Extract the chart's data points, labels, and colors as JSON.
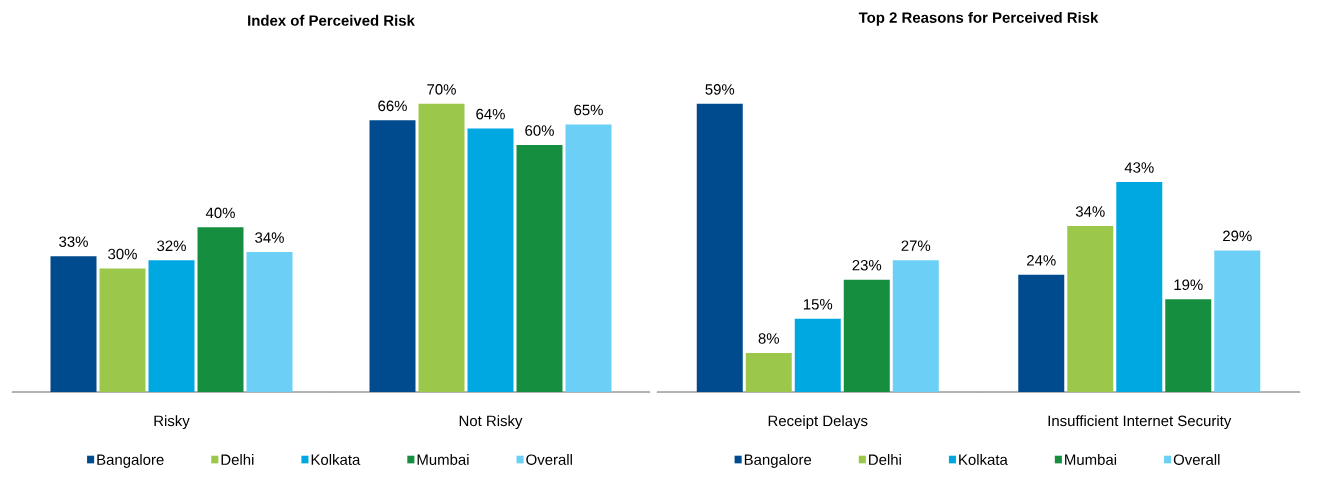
{
  "chart_data": [
    {
      "type": "bar",
      "title": "Index of Perceived Risk",
      "categories": [
        "Risky",
        "Not Risky"
      ],
      "legend": "bottom",
      "series": [
        {
          "name": "Bangalore",
          "color": "#004b8d",
          "values": [
            33,
            66
          ],
          "value_labels": [
            "33%",
            "66%"
          ]
        },
        {
          "name": "Delhi",
          "color": "#9bc84b",
          "values": [
            30,
            70
          ],
          "value_labels": [
            "30%",
            "70%"
          ]
        },
        {
          "name": "Kolkata",
          "color": "#00a8e1",
          "values": [
            32,
            64
          ],
          "value_labels": [
            "32%",
            "64%"
          ]
        },
        {
          "name": "Mumbai",
          "color": "#158f3f",
          "values": [
            40,
            60
          ],
          "value_labels": [
            "40%",
            "60%"
          ]
        },
        {
          "name": "Overall",
          "color": "#6ccff6",
          "values": [
            34,
            65
          ],
          "value_labels": [
            "34%",
            "65%"
          ]
        }
      ]
    },
    {
      "type": "bar",
      "title": "Top 2 Reasons for Perceived Risk",
      "categories": [
        "Receipt Delays",
        "Insufficient Internet Security"
      ],
      "legend": "bottom",
      "series": [
        {
          "name": "Bangalore",
          "color": "#004b8d",
          "values": [
            59,
            24
          ],
          "value_labels": [
            "59%",
            "24%"
          ]
        },
        {
          "name": "Delhi",
          "color": "#9bc84b",
          "values": [
            8,
            34
          ],
          "value_labels": [
            "8%",
            "34%"
          ]
        },
        {
          "name": "Kolkata",
          "color": "#00a8e1",
          "values": [
            15,
            43
          ],
          "value_labels": [
            "15%",
            "43%"
          ]
        },
        {
          "name": "Mumbai",
          "color": "#158f3f",
          "values": [
            23,
            19
          ],
          "value_labels": [
            "23%",
            "19%"
          ]
        },
        {
          "name": "Overall",
          "color": "#6ccff6",
          "values": [
            27,
            29
          ],
          "value_labels": [
            "27%",
            "29%"
          ]
        }
      ]
    }
  ]
}
